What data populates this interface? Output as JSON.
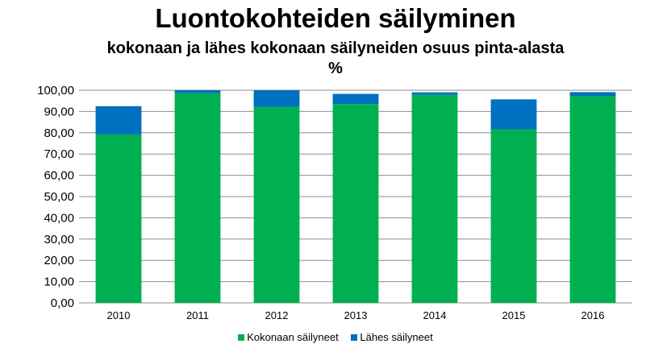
{
  "chart_data": {
    "type": "bar",
    "stacked": true,
    "title": "Luontokohteiden säilyminen",
    "subtitle": "kokonaan ja lähes kokonaan säilyneiden osuus pinta-alasta %",
    "categories": [
      "2010",
      "2011",
      "2012",
      "2013",
      "2014",
      "2015",
      "2016"
    ],
    "series": [
      {
        "name": "Kokonaan säilyneet",
        "color": "#00b050",
        "values": [
          79.2,
          98.6,
          92.2,
          93.5,
          97.8,
          81.6,
          97.2
        ]
      },
      {
        "name": "Lähes säilyneet",
        "color": "#0070c0",
        "values": [
          13.3,
          1.4,
          7.8,
          4.8,
          1.2,
          14.1,
          1.9
        ]
      }
    ],
    "ylim": [
      0,
      100
    ],
    "yticks": [
      "0,00",
      "10,00",
      "20,00",
      "30,00",
      "40,00",
      "50,00",
      "60,00",
      "70,00",
      "80,00",
      "90,00",
      "100,00"
    ],
    "grid": true,
    "legend": "bottom"
  }
}
